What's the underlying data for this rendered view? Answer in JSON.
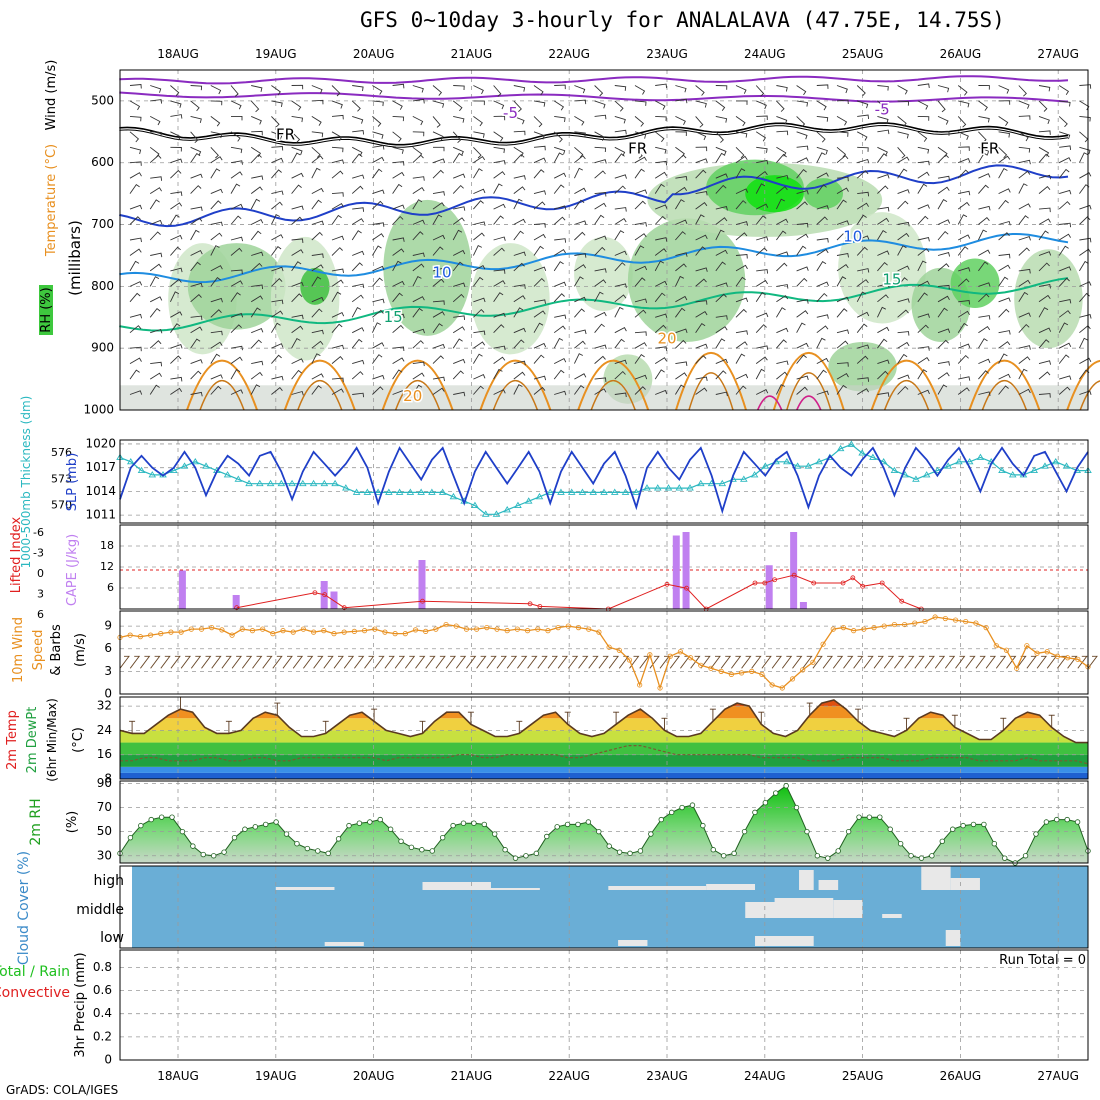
{
  "title": "GFS 0~10day 3-hourly for ANALALAVA (47.75E, 14.75S)",
  "credit": "GrADS: COLA/IGES",
  "colors": {
    "frame": "#000000",
    "grid": "#9a9a9a",
    "purple": "#8a2bc0",
    "blue": "#1f3fc8",
    "cyan": "#2bb8c0",
    "green": "#20c020",
    "red": "#e02020",
    "orange": "#e89020",
    "brown": "#6b4a2b",
    "cloudbg": "#6aaed6",
    "rhfill": "#5cc85c",
    "lightgreen": "#c8e6c0"
  },
  "chart_data": [
    {
      "type": "heatmap",
      "title": "Wind (m/s) / Temperature (°C) / RH (%)",
      "ylabel_parts": [
        "Wind (m/s)",
        "Temperature (°C)",
        "RH (%)",
        "(millibars)"
      ],
      "x_dates": [
        "18AUG",
        "19AUG",
        "20AUG",
        "21AUG",
        "22AUG",
        "23AUG",
        "24AUG",
        "25AUG",
        "26AUG",
        "27AUG"
      ],
      "ylim": [
        1000,
        450
      ],
      "yticks": [
        1000,
        900,
        800,
        700,
        600,
        500
      ],
      "contour_labels": [
        {
          "text": "FR",
          "t": 1.1,
          "p": 555
        },
        {
          "text": "FR",
          "t": 4.7,
          "p": 578
        },
        {
          "text": "FR",
          "t": 8.3,
          "p": 578
        },
        {
          "text": "-5",
          "t": 3.4,
          "p": 520
        },
        {
          "text": "-5",
          "t": 7.2,
          "p": 515
        },
        {
          "text": "10",
          "t": 2.7,
          "p": 778
        },
        {
          "text": "10",
          "t": 6.9,
          "p": 720
        },
        {
          "text": "15",
          "t": 2.2,
          "p": 850
        },
        {
          "text": "15",
          "t": 7.3,
          "p": 790
        },
        {
          "text": "20",
          "t": 5.0,
          "p": 885
        },
        {
          "text": "20",
          "t": 2.4,
          "p": 978
        }
      ]
    },
    {
      "type": "line",
      "title": "SLP (mb) / 1000-500mb Thickness (dm)",
      "ylabel_left": "1000-500mb Thickness (dm)",
      "ylabel_right": "SLP (mb)",
      "slp_ticks": [
        1011,
        1014,
        1017,
        1020
      ],
      "thick_ticks": [
        570,
        573,
        576
      ],
      "series": [
        {
          "name": "SLP (mb)",
          "ylim": [
            1010,
            1020.5
          ],
          "values": [
            1013,
            1017,
            1018.5,
            1017,
            1016,
            1017,
            1019,
            1017,
            1013.5,
            1016.5,
            1018.5,
            1017.5,
            1016,
            1018.5,
            1019,
            1016.5,
            1013,
            1016.5,
            1019,
            1017.5,
            1016,
            1017.5,
            1019.5,
            1017,
            1012.5,
            1016.5,
            1019.5,
            1017.5,
            1015.5,
            1018,
            1019.5,
            1016,
            1012.5,
            1016.5,
            1019,
            1017,
            1015,
            1017,
            1019,
            1016.5,
            1012.5,
            1016.5,
            1019,
            1017,
            1015,
            1017.5,
            1019,
            1016,
            1012,
            1017,
            1019,
            1017,
            1015.5,
            1018,
            1019.5,
            1016,
            1011.5,
            1016,
            1019,
            1017.5,
            1016,
            1018,
            1019,
            1016,
            1012,
            1016,
            1018.5,
            1017,
            1016,
            1018,
            1019.5,
            1017,
            1013.5,
            1017,
            1019.5,
            1018,
            1016,
            1018,
            1019.5,
            1017,
            1014,
            1017.5,
            1019.5,
            1017.5,
            1016,
            1018.5,
            1019,
            1016.5,
            1014,
            1017,
            1019
          ]
        },
        {
          "name": "1000-500mb Thickness (dm)",
          "ylim": [
            568,
            577.5
          ],
          "values": [
            575.5,
            575,
            574,
            573.5,
            573.5,
            574,
            574.5,
            575,
            574.5,
            574,
            573.5,
            573,
            572.5,
            572.5,
            572.5,
            572.5,
            572.5,
            572.5,
            572.5,
            572.5,
            572.5,
            572,
            571.5,
            571.5,
            571.5,
            571.5,
            571.5,
            571.5,
            571.5,
            571.5,
            571.5,
            571,
            570.5,
            570,
            569,
            569,
            569.5,
            570,
            570.5,
            571,
            571.5,
            571.5,
            571.5,
            571.5,
            571.5,
            571.5,
            571.5,
            571.5,
            571.5,
            572,
            572,
            572,
            572,
            572,
            572.5,
            572.5,
            572.5,
            573,
            573,
            573.5,
            574.5,
            575,
            575,
            574.5,
            574.5,
            575,
            575.5,
            576.5,
            577,
            576,
            575.5,
            575,
            574,
            573.5,
            573,
            573.5,
            574,
            574.5,
            575,
            575,
            575.5,
            575,
            574,
            573.5,
            573.5,
            574,
            574.5,
            575,
            574.5,
            574,
            574
          ]
        }
      ]
    },
    {
      "type": "bar",
      "title": "Lifted Index / CAPE (J/kg)",
      "ylabel_left": "Lifted Index",
      "ylabel_right": "CAPE (J/kg)",
      "li_ticks": [
        "-6",
        "-3",
        "0",
        "3",
        "6"
      ],
      "cape_ticks": [
        "18",
        "12",
        "6"
      ],
      "cape_ylim": [
        0,
        24
      ],
      "cape_bars": [
        {
          "t": 0.05,
          "value": 11
        },
        {
          "t": 0.6,
          "value": 4
        },
        {
          "t": 1.5,
          "value": 8
        },
        {
          "t": 1.6,
          "value": 5
        },
        {
          "t": 2.5,
          "value": 14
        },
        {
          "t": 5.1,
          "value": 21
        },
        {
          "t": 5.2,
          "value": 22
        },
        {
          "t": 6.05,
          "value": 12.5
        },
        {
          "t": 6.3,
          "value": 22
        },
        {
          "t": 6.4,
          "value": 2
        }
      ],
      "li_line": [
        {
          "t": 0.6,
          "value": 5.8
        },
        {
          "t": 1.4,
          "value": 3.5
        },
        {
          "t": 1.5,
          "value": 3.8
        },
        {
          "t": 1.7,
          "value": 5.8
        },
        {
          "t": 2.5,
          "value": 4.8
        },
        {
          "t": 3.6,
          "value": 5.2
        },
        {
          "t": 3.7,
          "value": 5.6
        },
        {
          "t": 4.4,
          "value": 6.0
        },
        {
          "t": 5.0,
          "value": 2.2
        },
        {
          "t": 5.2,
          "value": 2.8
        },
        {
          "t": 5.4,
          "value": 6.0
        },
        {
          "t": 5.9,
          "value": 2.0
        },
        {
          "t": 6.0,
          "value": 2.0
        },
        {
          "t": 6.1,
          "value": 1.5
        },
        {
          "t": 6.3,
          "value": 0.8
        },
        {
          "t": 6.5,
          "value": 2.0
        },
        {
          "t": 6.8,
          "value": 2.0
        },
        {
          "t": 6.9,
          "value": 1.2
        },
        {
          "t": 7.0,
          "value": 2.5
        },
        {
          "t": 7.2,
          "value": 2.0
        },
        {
          "t": 7.4,
          "value": 4.8
        },
        {
          "t": 7.6,
          "value": 6.0
        }
      ]
    },
    {
      "type": "line",
      "title": "10m Wind Speed & Barbs (m/s)",
      "ylabel": "10m Wind Speed & Barbs (m/s)",
      "yticks": [
        0,
        3,
        6,
        9
      ],
      "ylim": [
        0,
        11
      ],
      "series": [
        {
          "name": "10m Wind Speed",
          "values": [
            7.5,
            7.8,
            7.6,
            7.8,
            8.0,
            8.2,
            8.2,
            8.6,
            8.6,
            8.8,
            8.5,
            7.8,
            8.6,
            8.4,
            8.6,
            8.0,
            8.4,
            8.2,
            8.6,
            8.2,
            8.4,
            8.0,
            8.2,
            8.3,
            8.4,
            8.6,
            8.2,
            8.0,
            8.0,
            8.5,
            8.3,
            8.6,
            9.2,
            9.0,
            8.6,
            8.6,
            8.8,
            8.6,
            8.4,
            8.6,
            8.4,
            8.6,
            8.4,
            8.8,
            9.0,
            8.8,
            8.6,
            8.2,
            6.2,
            5.8,
            4.5,
            1.2,
            5.2,
            0.8,
            5.0,
            5.6,
            4.8,
            3.8,
            3.4,
            3.0,
            2.6,
            2.8,
            3.0,
            2.6,
            1.2,
            0.8,
            2.0,
            3.2,
            4.2,
            6.6,
            8.6,
            8.8,
            8.4,
            8.6,
            8.8,
            9.0,
            9.2,
            9.2,
            9.4,
            9.6,
            10.2,
            10.0,
            9.8,
            9.6,
            9.4,
            8.8,
            6.4,
            5.8,
            3.4,
            6.4,
            5.4,
            5.6,
            5.0,
            4.8,
            4.6,
            3.6
          ]
        }
      ]
    },
    {
      "type": "area",
      "title": "2m Temp / 2m DewPt (6hr Min/Max) (°C)",
      "ylabel_parts": [
        "2m Temp",
        "2m DewPt",
        "(6hr Min/Max)",
        "(°C)"
      ],
      "yticks": [
        "8",
        "16",
        "24",
        "32"
      ],
      "ylim": [
        8,
        35
      ],
      "series": [
        {
          "name": "2m Temp",
          "values": [
            24,
            23,
            23,
            26,
            29,
            31,
            30,
            25,
            23,
            23,
            24,
            28,
            30,
            29,
            25,
            22,
            22,
            23,
            26,
            29,
            30,
            27,
            24,
            23,
            22,
            23,
            27,
            30,
            30,
            26,
            24,
            22,
            22,
            23,
            26,
            29,
            30,
            26,
            23,
            22,
            23,
            26,
            29,
            31,
            28,
            24,
            22,
            22,
            23,
            27,
            31,
            33,
            32,
            26,
            23,
            22,
            24,
            29,
            33,
            34,
            31,
            27,
            24,
            23,
            22,
            24,
            28,
            30,
            29,
            25,
            23,
            21,
            21,
            24,
            28,
            30,
            29,
            25,
            22,
            20,
            20
          ]
        },
        {
          "name": "2m DewPt",
          "values": [
            14,
            14,
            15,
            15,
            14,
            14,
            14,
            15,
            15,
            14,
            14,
            15,
            15,
            14,
            14,
            15,
            15,
            15,
            15,
            15,
            15,
            15,
            14,
            15,
            15,
            15,
            15,
            15,
            16,
            16,
            15,
            15,
            16,
            16,
            16,
            16,
            16,
            15,
            15,
            16,
            17,
            18,
            19,
            19,
            18,
            17,
            16,
            16,
            16,
            16,
            16,
            16,
            16,
            15,
            15,
            15,
            15,
            14,
            14,
            14,
            15,
            15,
            15,
            15,
            14,
            14,
            14,
            15,
            15,
            15,
            15,
            14,
            14,
            14,
            14,
            15,
            14,
            14,
            14,
            14,
            13
          ]
        }
      ]
    },
    {
      "type": "area",
      "title": "2m RH (%)",
      "ylabel": "2m RH (%)",
      "yticks": [
        30,
        50,
        70,
        90
      ],
      "ylim": [
        24,
        92
      ],
      "series": [
        {
          "name": "2m RH",
          "values": [
            32,
            45,
            55,
            60,
            62,
            62,
            50,
            38,
            31,
            30,
            33,
            45,
            52,
            54,
            56,
            58,
            48,
            40,
            36,
            34,
            32,
            44,
            55,
            57,
            58,
            60,
            52,
            42,
            37,
            35,
            34,
            45,
            55,
            57,
            57,
            56,
            48,
            35,
            28,
            30,
            32,
            46,
            54,
            56,
            56,
            58,
            50,
            38,
            33,
            32,
            34,
            48,
            60,
            66,
            70,
            72,
            55,
            35,
            30,
            32,
            50,
            66,
            74,
            82,
            88,
            70,
            50,
            30,
            28,
            34,
            50,
            62,
            62,
            62,
            52,
            40,
            30,
            28,
            30,
            42,
            52,
            55,
            56,
            56,
            40,
            28,
            24,
            30,
            48,
            58,
            60,
            60,
            58,
            34
          ]
        }
      ]
    },
    {
      "type": "bar",
      "title": "Cloud Cover (%)",
      "ylabel": "Cloud Cover (%)",
      "levels": [
        "high",
        "middle",
        "low"
      ]
    },
    {
      "type": "bar",
      "title": "3hr Precip (mm)",
      "ylabel": "3hr Precip (mm)",
      "legend": [
        "Total / Rain",
        "Convective"
      ],
      "run_total": "Run Total = 0",
      "yticks": [
        "0",
        "0.2",
        "0.4",
        "0.6",
        "0.8"
      ],
      "ylim": [
        0,
        0.95
      ],
      "values": []
    }
  ]
}
